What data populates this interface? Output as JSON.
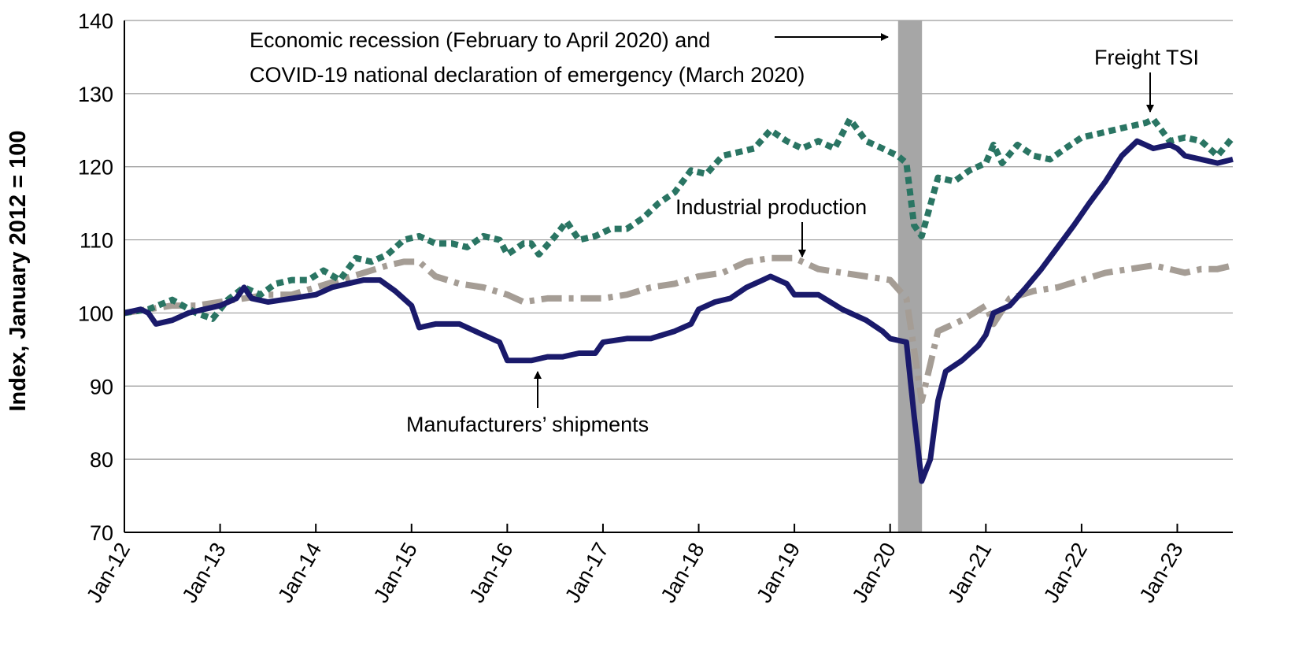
{
  "chart_data": {
    "type": "line",
    "title": "",
    "xlabel": "",
    "ylabel": "Index, January 2012 = 100",
    "ylim": [
      70,
      140
    ],
    "yticks": [
      70,
      80,
      90,
      100,
      110,
      120,
      130,
      140
    ],
    "xlim": [
      2012.0,
      2023.58
    ],
    "xtick_labels": [
      "Jan-12",
      "Jan-13",
      "Jan-14",
      "Jan-15",
      "Jan-16",
      "Jan-17",
      "Jan-18",
      "Jan-19",
      "Jan-20",
      "Jan-21",
      "Jan-22",
      "Jan-23"
    ],
    "grid": "horizontal",
    "recession_band": {
      "start": 2020.083,
      "end": 2020.333,
      "color": "#a6a6a6"
    },
    "annotations": {
      "recession_line1": "Economic recession (February to April 2020) and",
      "recession_line2": "COVID-19 national declaration of emergency (March 2020)",
      "freight_tsi": "Freight TSI",
      "industrial_production": "Industrial production",
      "manufacturers_shipments": "Manufacturers’ shipments"
    },
    "series": [
      {
        "name": "Freight TSI",
        "color": "#2a7563",
        "style": "dotted",
        "points": [
          [
            2012.0,
            100
          ],
          [
            2012.25,
            100.5
          ],
          [
            2012.5,
            101.8
          ],
          [
            2012.75,
            100
          ],
          [
            2012.92,
            99.2
          ],
          [
            2013.08,
            101.8
          ],
          [
            2013.25,
            103.5
          ],
          [
            2013.42,
            102.5
          ],
          [
            2013.58,
            104
          ],
          [
            2013.75,
            104.5
          ],
          [
            2013.92,
            104.5
          ],
          [
            2014.08,
            105.8
          ],
          [
            2014.25,
            104.5
          ],
          [
            2014.42,
            107.5
          ],
          [
            2014.58,
            107
          ],
          [
            2014.75,
            108
          ],
          [
            2014.92,
            110
          ],
          [
            2015.08,
            110.5
          ],
          [
            2015.25,
            109.5
          ],
          [
            2015.42,
            109.5
          ],
          [
            2015.58,
            109
          ],
          [
            2015.75,
            110.5
          ],
          [
            2015.92,
            110
          ],
          [
            2016.0,
            108
          ],
          [
            2016.17,
            109.5
          ],
          [
            2016.25,
            109.5
          ],
          [
            2016.33,
            108
          ],
          [
            2016.5,
            110.5
          ],
          [
            2016.62,
            112.5
          ],
          [
            2016.75,
            110
          ],
          [
            2016.92,
            110.5
          ],
          [
            2017.08,
            111.5
          ],
          [
            2017.25,
            111.5
          ],
          [
            2017.42,
            113
          ],
          [
            2017.58,
            115
          ],
          [
            2017.75,
            116.5
          ],
          [
            2017.92,
            119.5
          ],
          [
            2018.08,
            119
          ],
          [
            2018.25,
            121.5
          ],
          [
            2018.42,
            122
          ],
          [
            2018.58,
            122.5
          ],
          [
            2018.75,
            125
          ],
          [
            2018.92,
            123.5
          ],
          [
            2019.08,
            122.5
          ],
          [
            2019.25,
            123.5
          ],
          [
            2019.42,
            122.5
          ],
          [
            2019.58,
            126.5
          ],
          [
            2019.75,
            123.5
          ],
          [
            2019.92,
            122.5
          ],
          [
            2020.08,
            121.5
          ],
          [
            2020.17,
            120.5
          ],
          [
            2020.25,
            112
          ],
          [
            2020.33,
            110.5
          ],
          [
            2020.5,
            118.5
          ],
          [
            2020.67,
            118
          ],
          [
            2020.83,
            119.5
          ],
          [
            2021.0,
            120.5
          ],
          [
            2021.08,
            123
          ],
          [
            2021.17,
            120.5
          ],
          [
            2021.33,
            123
          ],
          [
            2021.5,
            121.5
          ],
          [
            2021.67,
            121
          ],
          [
            2021.83,
            122.5
          ],
          [
            2022.0,
            124
          ],
          [
            2022.17,
            124.5
          ],
          [
            2022.33,
            125
          ],
          [
            2022.5,
            125.5
          ],
          [
            2022.67,
            126
          ],
          [
            2022.75,
            126.5
          ],
          [
            2022.92,
            123.5
          ],
          [
            2023.08,
            124
          ],
          [
            2023.25,
            123.5
          ],
          [
            2023.42,
            121.5
          ],
          [
            2023.58,
            124
          ]
        ]
      },
      {
        "name": "Industrial production",
        "color": "#a59d95",
        "style": "dash-dot",
        "points": [
          [
            2012.0,
            100
          ],
          [
            2012.25,
            100.5
          ],
          [
            2012.5,
            101
          ],
          [
            2012.75,
            101
          ],
          [
            2013.0,
            101.5
          ],
          [
            2013.25,
            102
          ],
          [
            2013.5,
            102.5
          ],
          [
            2013.75,
            102.5
          ],
          [
            2014.0,
            103.5
          ],
          [
            2014.25,
            104.5
          ],
          [
            2014.5,
            105.5
          ],
          [
            2014.75,
            106.5
          ],
          [
            2014.92,
            107
          ],
          [
            2015.08,
            107
          ],
          [
            2015.25,
            105
          ],
          [
            2015.5,
            104
          ],
          [
            2015.75,
            103.5
          ],
          [
            2016.0,
            102.5
          ],
          [
            2016.17,
            101.5
          ],
          [
            2016.42,
            102
          ],
          [
            2016.75,
            102
          ],
          [
            2017.0,
            102
          ],
          [
            2017.25,
            102.5
          ],
          [
            2017.5,
            103.5
          ],
          [
            2017.75,
            104
          ],
          [
            2018.0,
            105
          ],
          [
            2018.25,
            105.5
          ],
          [
            2018.5,
            107
          ],
          [
            2018.75,
            107.5
          ],
          [
            2019.0,
            107.5
          ],
          [
            2019.25,
            106
          ],
          [
            2019.5,
            105.5
          ],
          [
            2019.75,
            105
          ],
          [
            2020.0,
            104.5
          ],
          [
            2020.17,
            102
          ],
          [
            2020.25,
            95
          ],
          [
            2020.33,
            88
          ],
          [
            2020.42,
            93
          ],
          [
            2020.5,
            97.5
          ],
          [
            2020.75,
            99
          ],
          [
            2021.0,
            101
          ],
          [
            2021.08,
            98.5
          ],
          [
            2021.25,
            102
          ],
          [
            2021.5,
            103
          ],
          [
            2021.75,
            103.5
          ],
          [
            2022.0,
            104.5
          ],
          [
            2022.25,
            105.5
          ],
          [
            2022.5,
            106
          ],
          [
            2022.75,
            106.5
          ],
          [
            2022.92,
            106
          ],
          [
            2023.08,
            105.5
          ],
          [
            2023.25,
            106
          ],
          [
            2023.42,
            106
          ],
          [
            2023.58,
            106.5
          ]
        ]
      },
      {
        "name": "Manufacturers’ shipments",
        "color": "#1a1a6b",
        "style": "solid",
        "points": [
          [
            2012.0,
            100
          ],
          [
            2012.17,
            100.5
          ],
          [
            2012.25,
            100
          ],
          [
            2012.33,
            98.5
          ],
          [
            2012.5,
            99
          ],
          [
            2012.67,
            100
          ],
          [
            2012.83,
            100.5
          ],
          [
            2013.0,
            101
          ],
          [
            2013.17,
            102
          ],
          [
            2013.25,
            103.5
          ],
          [
            2013.33,
            102
          ],
          [
            2013.5,
            101.5
          ],
          [
            2013.75,
            102
          ],
          [
            2014.0,
            102.5
          ],
          [
            2014.17,
            103.5
          ],
          [
            2014.33,
            104
          ],
          [
            2014.5,
            104.5
          ],
          [
            2014.67,
            104.5
          ],
          [
            2014.83,
            103
          ],
          [
            2015.0,
            101
          ],
          [
            2015.08,
            98
          ],
          [
            2015.25,
            98.5
          ],
          [
            2015.5,
            98.5
          ],
          [
            2015.75,
            97
          ],
          [
            2015.92,
            96
          ],
          [
            2016.0,
            93.5
          ],
          [
            2016.25,
            93.5
          ],
          [
            2016.42,
            94
          ],
          [
            2016.58,
            94
          ],
          [
            2016.75,
            94.5
          ],
          [
            2016.92,
            94.5
          ],
          [
            2017.0,
            96
          ],
          [
            2017.25,
            96.5
          ],
          [
            2017.5,
            96.5
          ],
          [
            2017.75,
            97.5
          ],
          [
            2017.92,
            98.5
          ],
          [
            2018.0,
            100.5
          ],
          [
            2018.17,
            101.5
          ],
          [
            2018.33,
            102
          ],
          [
            2018.5,
            103.5
          ],
          [
            2018.67,
            104.5
          ],
          [
            2018.75,
            105
          ],
          [
            2018.92,
            104
          ],
          [
            2019.0,
            102.5
          ],
          [
            2019.25,
            102.5
          ],
          [
            2019.5,
            100.5
          ],
          [
            2019.75,
            99
          ],
          [
            2019.92,
            97.5
          ],
          [
            2020.0,
            96.5
          ],
          [
            2020.17,
            96
          ],
          [
            2020.25,
            86
          ],
          [
            2020.33,
            77
          ],
          [
            2020.42,
            80
          ],
          [
            2020.5,
            88
          ],
          [
            2020.58,
            92
          ],
          [
            2020.75,
            93.5
          ],
          [
            2020.92,
            95.5
          ],
          [
            2021.0,
            97
          ],
          [
            2021.08,
            100
          ],
          [
            2021.25,
            101
          ],
          [
            2021.42,
            103.5
          ],
          [
            2021.58,
            106
          ],
          [
            2021.75,
            109
          ],
          [
            2021.92,
            112
          ],
          [
            2022.08,
            115
          ],
          [
            2022.25,
            118
          ],
          [
            2022.42,
            121.5
          ],
          [
            2022.58,
            123.5
          ],
          [
            2022.75,
            122.5
          ],
          [
            2022.92,
            123
          ],
          [
            2023.0,
            122.5
          ],
          [
            2023.08,
            121.5
          ],
          [
            2023.25,
            121
          ],
          [
            2023.42,
            120.5
          ],
          [
            2023.58,
            121
          ]
        ]
      }
    ]
  }
}
